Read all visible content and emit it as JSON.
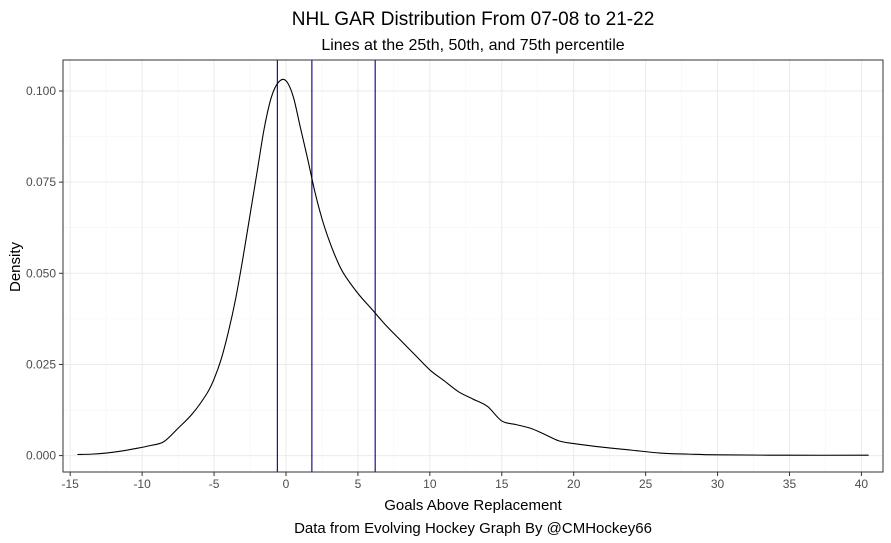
{
  "chart_data": {
    "type": "line",
    "title": "NHL GAR Distribution From 07-08 to 21-22",
    "subtitle": "Lines at the 25th, 50th, and 75th percentile",
    "xlabel": "Goals Above Replacement",
    "ylabel": "Density",
    "caption": "Data from Evolving Hockey Graph By @CMHockey66",
    "xlim": [
      -15.5,
      41.5
    ],
    "ylim": [
      -0.0045,
      0.1085
    ],
    "x_ticks": [
      -15,
      -10,
      -5,
      0,
      5,
      10,
      15,
      20,
      25,
      30,
      35,
      40
    ],
    "x_tick_labels": [
      "-15",
      "-10",
      "-5",
      "0",
      "5",
      "10",
      "15",
      "20",
      "25",
      "30",
      "35",
      "40"
    ],
    "y_ticks": [
      0,
      0.025,
      0.05,
      0.075,
      0.1
    ],
    "y_tick_labels": [
      "0.000",
      "0.025",
      "0.050",
      "0.075",
      "0.100"
    ],
    "grid": true,
    "legend": "none",
    "series": [
      {
        "color": "#000000",
        "x": [
          -14.5,
          -13.5,
          -12.5,
          -11.5,
          -10.5,
          -9.5,
          -8.5,
          -7.5,
          -6.5,
          -5.5,
          -5,
          -4.5,
          -4,
          -3.5,
          -3,
          -2.5,
          -2,
          -1.5,
          -1,
          -0.5,
          0,
          0.5,
          1,
          1.5,
          2,
          2.5,
          3,
          3.5,
          4,
          5,
          6,
          7,
          8,
          9,
          10,
          11,
          12,
          13,
          14,
          15,
          16,
          17,
          18,
          19,
          20,
          22,
          24,
          26,
          28,
          30,
          35,
          40.5
        ],
        "y": [
          0.0003,
          0.0004,
          0.0007,
          0.0012,
          0.0019,
          0.0027,
          0.0038,
          0.0075,
          0.0115,
          0.017,
          0.021,
          0.0265,
          0.034,
          0.043,
          0.054,
          0.066,
          0.078,
          0.09,
          0.0985,
          0.1025,
          0.1028,
          0.0985,
          0.09,
          0.0815,
          0.0725,
          0.065,
          0.059,
          0.054,
          0.05,
          0.0445,
          0.04,
          0.0355,
          0.0315,
          0.0275,
          0.0235,
          0.0205,
          0.0175,
          0.0155,
          0.0135,
          0.0095,
          0.0085,
          0.0075,
          0.0058,
          0.004,
          0.0033,
          0.0023,
          0.0015,
          0.0007,
          0.0004,
          0.0002,
          0.0001,
          0.0001
        ]
      }
    ],
    "vlines": [
      {
        "x": -0.6,
        "color": "#000080"
      },
      {
        "x": 1.8,
        "color": "#000080"
      },
      {
        "x": 6.2,
        "color": "#000080"
      }
    ],
    "colors": {
      "panel_border": "#333333",
      "grid_major": "#ebebeb",
      "grid_minor": "#f5f5f5",
      "percentile_line": "#000080",
      "density_line": "#000000"
    }
  }
}
